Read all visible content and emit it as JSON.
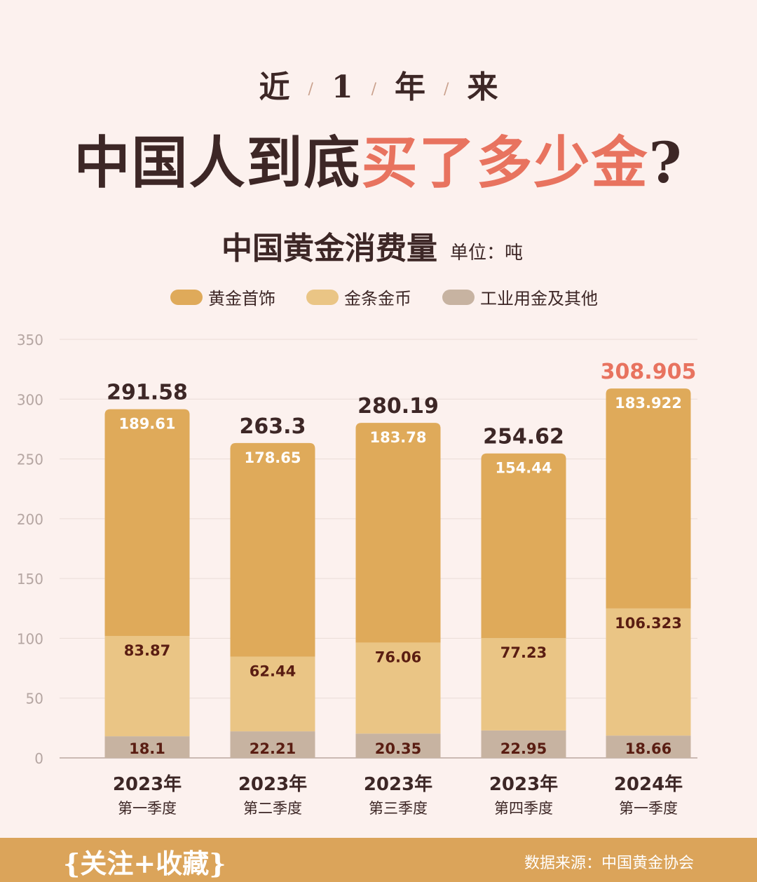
{
  "header": {
    "kicker": [
      "近",
      "1",
      "年",
      "来"
    ],
    "headline_dark": "中国人到底",
    "headline_accent": "买了多少金",
    "headline_end": "?"
  },
  "subtitle": {
    "title": "中国黄金消费量",
    "unit": "单位：吨"
  },
  "colors": {
    "jewelry": "#dfaa5a",
    "bars_coins": "#eac585",
    "industrial": "#c7b3a1",
    "total_dark": "#3d2726",
    "total_highlight": "#e8735f",
    "bar_label_dark": "#5a1d12",
    "bar_label_light": "#ffffff"
  },
  "chart_data": {
    "type": "bar",
    "stacked": true,
    "categories": [
      {
        "year": "2023年",
        "quarter": "第一季度"
      },
      {
        "year": "2023年",
        "quarter": "第二季度"
      },
      {
        "year": "2023年",
        "quarter": "第三季度"
      },
      {
        "year": "2023年",
        "quarter": "第四季度"
      },
      {
        "year": "2024年",
        "quarter": "第一季度"
      }
    ],
    "series": [
      {
        "key": "industrial",
        "name": "工业用金及其他",
        "values": [
          18.1,
          22.21,
          20.35,
          22.95,
          18.66
        ],
        "labels": [
          "18.1",
          "22.21",
          "20.35",
          "22.95",
          "18.66"
        ]
      },
      {
        "key": "bars_coins",
        "name": "金条金币",
        "values": [
          83.87,
          62.44,
          76.06,
          77.23,
          106.323
        ],
        "labels": [
          "83.87",
          "62.44",
          "76.06",
          "77.23",
          "106.323"
        ]
      },
      {
        "key": "jewelry",
        "name": "黄金首饰",
        "values": [
          189.61,
          178.65,
          183.78,
          154.44,
          183.922
        ],
        "labels": [
          "189.61",
          "178.65",
          "183.78",
          "154.44",
          "183.922"
        ]
      }
    ],
    "legend_order": [
      "jewelry",
      "bars_coins",
      "industrial"
    ],
    "totals": [
      291.58,
      263.3,
      280.19,
      254.62,
      308.905
    ],
    "total_labels": [
      "291.58",
      "263.3",
      "280.19",
      "254.62",
      "308.905"
    ],
    "highlight_index": 4,
    "ylim": [
      0,
      350
    ],
    "yticks": [
      0,
      50,
      100,
      150,
      200,
      250,
      300,
      350
    ],
    "grid": true,
    "legend_position": "top"
  },
  "footer": {
    "cta": "{关注+收藏}",
    "source": "数据来源：中国黄金协会"
  }
}
